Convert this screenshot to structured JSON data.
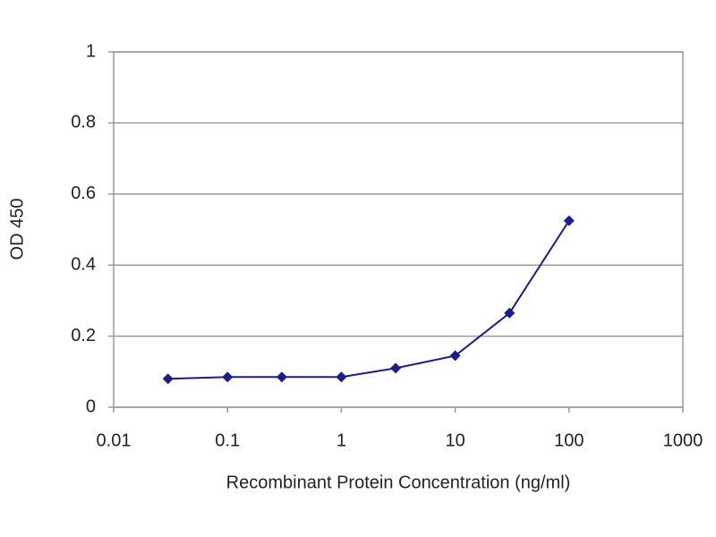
{
  "chart_data": {
    "type": "line",
    "xlabel": "Recombinant Protein Concentration (ng/ml)",
    "ylabel": "OD 450",
    "x": [
      0.03,
      0.1,
      0.3,
      1,
      3,
      10,
      30,
      100
    ],
    "values": [
      0.08,
      0.085,
      0.085,
      0.085,
      0.11,
      0.145,
      0.265,
      0.525
    ],
    "color": "#1c1c8a",
    "xscale": "log",
    "xlim": [
      0.01,
      1000
    ],
    "xticks": [
      0.01,
      0.1,
      1,
      10,
      100,
      1000
    ],
    "ylim": [
      0,
      1
    ],
    "yticks": [
      0,
      0.2,
      0.4,
      0.6,
      0.8,
      1
    ],
    "grid": true
  }
}
